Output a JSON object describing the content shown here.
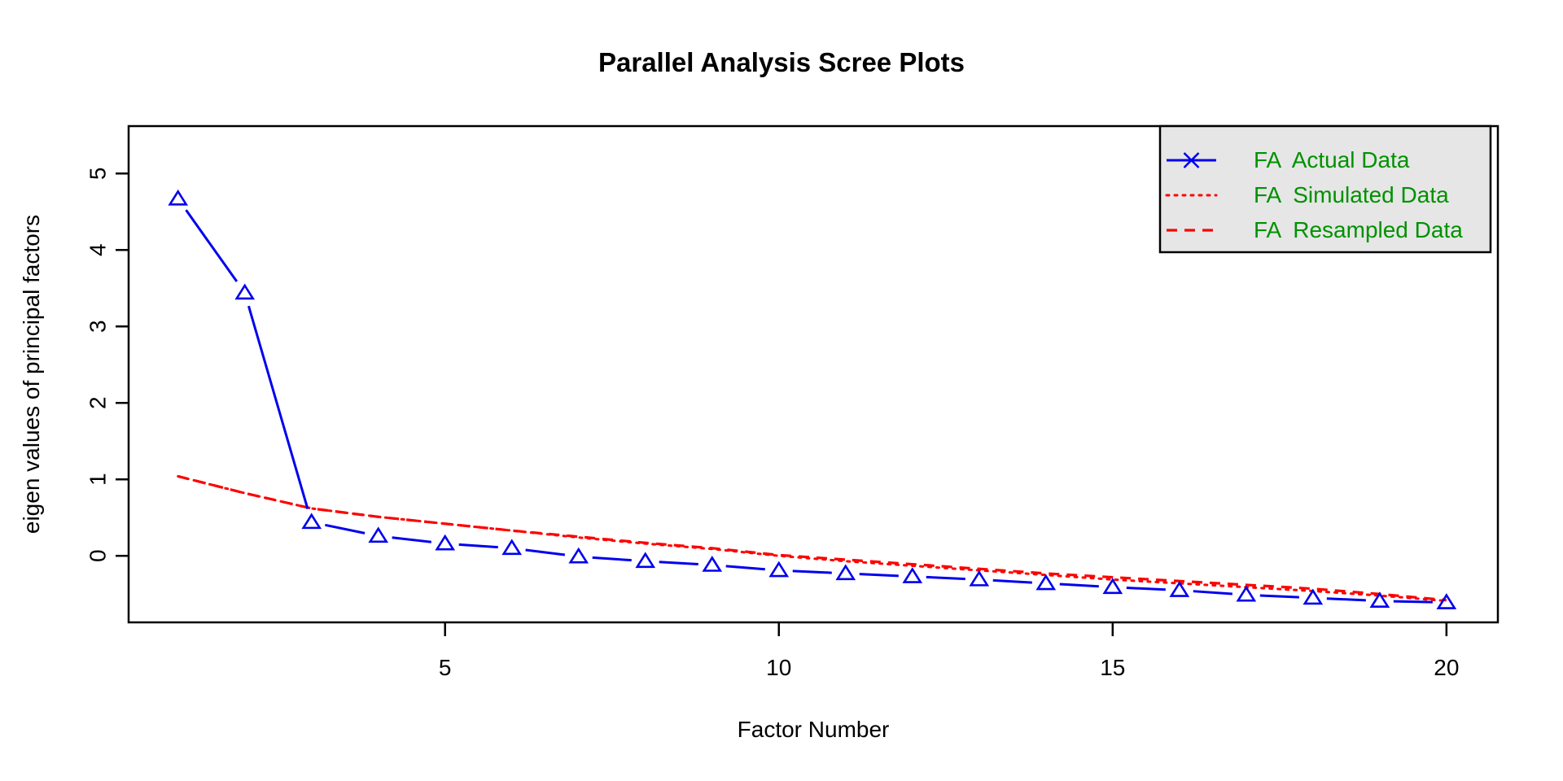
{
  "figure": {
    "title": "Parallel Analysis Scree Plots",
    "background": "#ffffff"
  },
  "colors": {
    "actual_series": "#0000ee",
    "simulated_series": "#ff0000",
    "resampled_series": "#ff0000",
    "legend_text": "#009100",
    "legend_fill": "#e6e6e6",
    "axis": "#000000",
    "tick_label": "#000000"
  },
  "chart_data": {
    "type": "line",
    "title": "Parallel Analysis Scree Plots",
    "xlabel": "Factor Number",
    "ylabel": "eigen values of principal factors",
    "x": [
      1,
      2,
      3,
      4,
      5,
      6,
      7,
      8,
      9,
      10,
      11,
      12,
      13,
      14,
      15,
      16,
      17,
      18,
      19,
      20
    ],
    "xticks": [
      5,
      10,
      15,
      20
    ],
    "yticks": [
      0,
      1,
      2,
      3,
      4,
      5
    ],
    "xlim": [
      0.26,
      20.77
    ],
    "ylim": [
      -0.87,
      5.62
    ],
    "grid": false,
    "legend_position": "top-right",
    "series": [
      {
        "name": "FA  Actual Data",
        "color": "#0000ee",
        "line_style": "solid",
        "marker": "open-triangle",
        "legend_marker": "x-cross",
        "values": [
          4.67,
          3.44,
          0.44,
          0.26,
          0.16,
          0.1,
          -0.01,
          -0.07,
          -0.12,
          -0.19,
          -0.23,
          -0.27,
          -0.31,
          -0.36,
          -0.41,
          -0.45,
          -0.51,
          -0.55,
          -0.59,
          -0.61
        ]
      },
      {
        "name": "FA  Simulated Data",
        "color": "#ff0000",
        "line_style": "dotted",
        "marker": "none",
        "legend_marker": "none",
        "values": [
          1.04,
          0.82,
          0.62,
          0.51,
          0.42,
          0.33,
          0.24,
          0.16,
          0.09,
          0.0,
          -0.07,
          -0.13,
          -0.19,
          -0.25,
          -0.31,
          -0.36,
          -0.41,
          -0.46,
          -0.52,
          -0.59
        ]
      },
      {
        "name": "FA  Resampled Data",
        "color": "#ff0000",
        "line_style": "dashed",
        "marker": "none",
        "legend_marker": "none",
        "values": [
          1.04,
          0.82,
          0.62,
          0.51,
          0.42,
          0.33,
          0.25,
          0.17,
          0.1,
          0.01,
          -0.05,
          -0.11,
          -0.17,
          -0.23,
          -0.28,
          -0.33,
          -0.38,
          -0.43,
          -0.5,
          -0.58
        ]
      }
    ]
  }
}
